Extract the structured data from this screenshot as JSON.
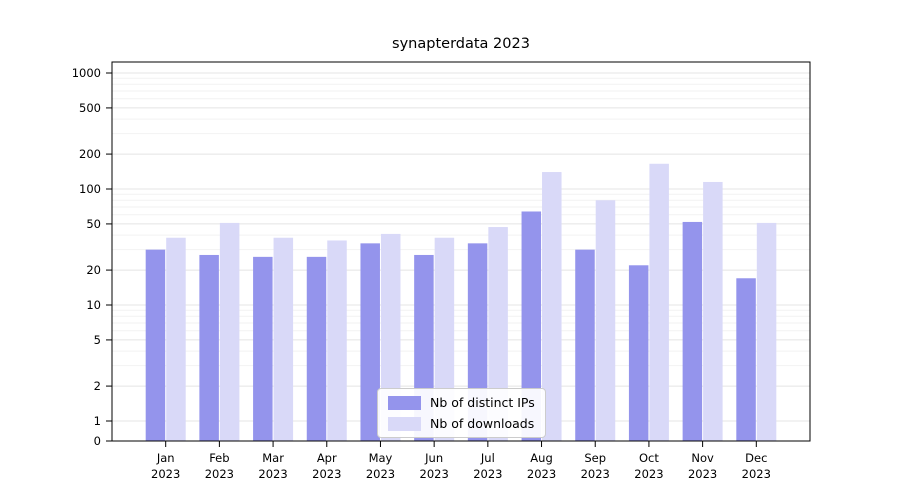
{
  "chart_data": {
    "type": "bar",
    "title": "synapterdata 2023",
    "categories": [
      "Jan 2023",
      "Feb 2023",
      "Mar 2023",
      "Apr 2023",
      "May 2023",
      "Jun 2023",
      "Jul 2023",
      "Aug 2023",
      "Sep 2023",
      "Oct 2023",
      "Nov 2023",
      "Dec 2023"
    ],
    "series": [
      {
        "name": "Nb of distinct IPs",
        "color": "#9494ec",
        "values": [
          30,
          27,
          26,
          26,
          34,
          27,
          34,
          64,
          30,
          22,
          52,
          17
        ]
      },
      {
        "name": "Nb of downloads",
        "color": "#d9d9f8",
        "values": [
          38,
          51,
          38,
          36,
          41,
          38,
          47,
          140,
          80,
          165,
          115,
          51
        ]
      }
    ],
    "xlabel": "",
    "ylabel": "",
    "yscale": "symlog",
    "yticks": [
      0,
      1,
      2,
      5,
      10,
      20,
      50,
      100,
      200,
      500,
      1000
    ],
    "ylim": [
      0,
      1200
    ],
    "grid": true,
    "legend_position": "lower center",
    "colors": {
      "major_grid": "#e4e4e4",
      "minor_grid": "#f2f2f2",
      "axis": "#000000",
      "background": "#ffffff"
    }
  }
}
